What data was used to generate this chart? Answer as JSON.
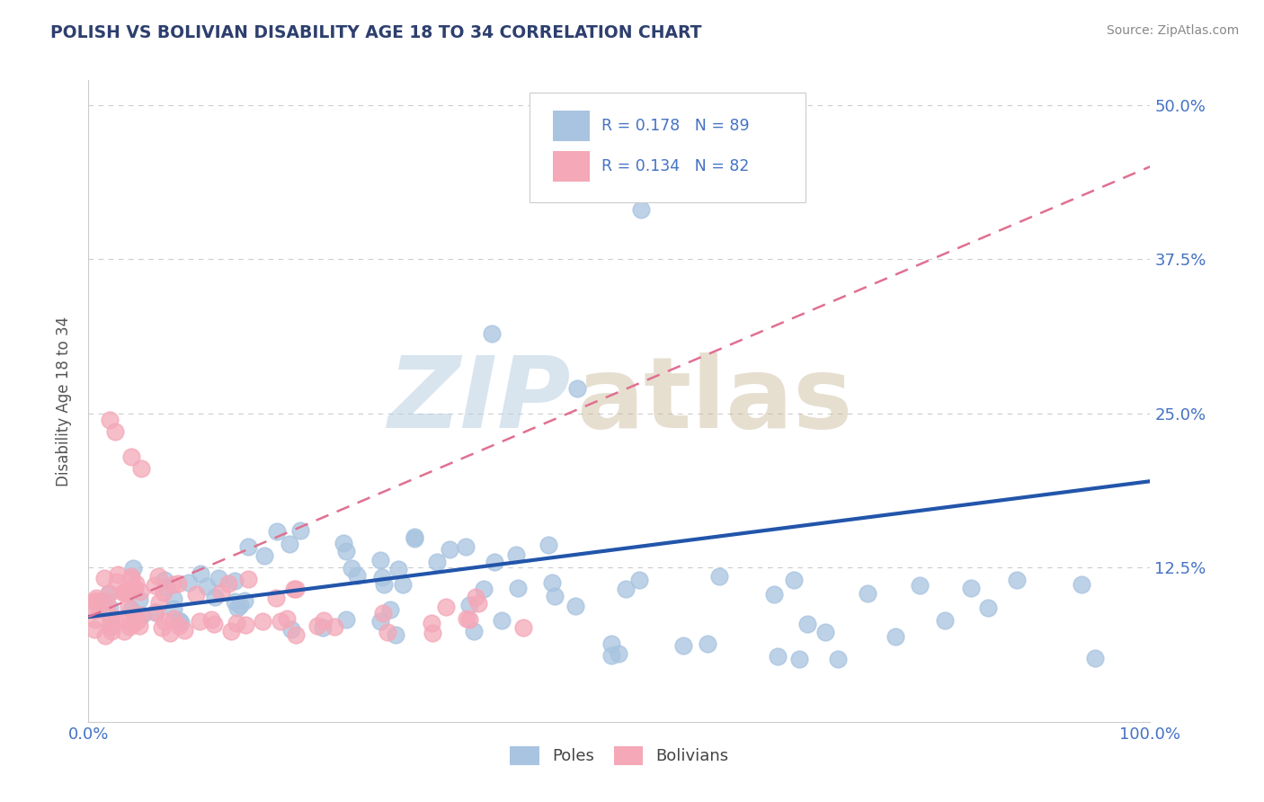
{
  "title": "POLISH VS BOLIVIAN DISABILITY AGE 18 TO 34 CORRELATION CHART",
  "source": "Source: ZipAtlas.com",
  "ylabel": "Disability Age 18 to 34",
  "xlim": [
    0.0,
    1.0
  ],
  "ylim": [
    0.0,
    0.52
  ],
  "poles_color": "#a8c4e0",
  "bolivians_color": "#f4a8b8",
  "poles_line_color": "#2255aa",
  "bolivians_line_color": "#e07090",
  "title_color": "#2d3f6e",
  "axis_color": "#4472c4",
  "bg_color": "#ffffff",
  "grid_color": "#cccccc",
  "poles_line_x0": 0.0,
  "poles_line_y0": 0.085,
  "poles_line_x1": 1.0,
  "poles_line_y1": 0.195,
  "bolivians_line_x0": 0.0,
  "bolivians_line_y0": 0.085,
  "bolivians_line_x1": 1.0,
  "bolivians_line_y1": 0.45
}
